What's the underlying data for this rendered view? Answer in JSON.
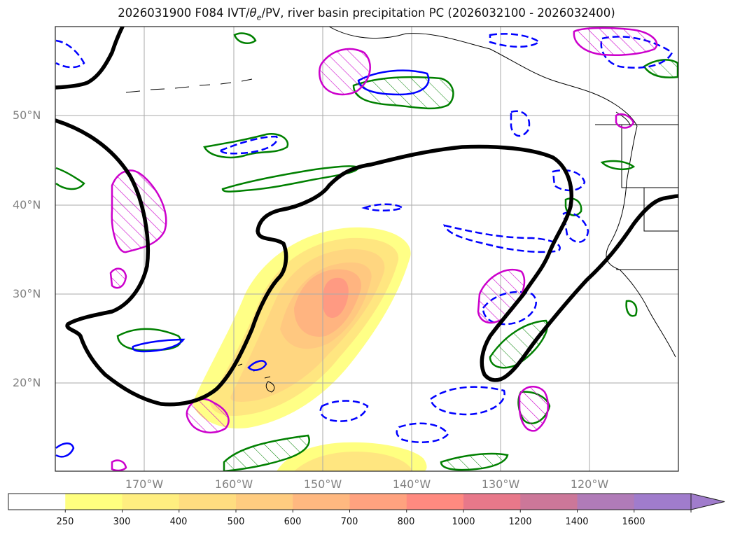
{
  "title_parts": [
    "2026031900 F084 IVT/",
    "θ",
    "e",
    "/PV, river basin precipitation PC (2026032100 - 2026032400)"
  ],
  "lat_labels": [
    {
      "id": "lat-50n",
      "text": "50°N",
      "lat": 50
    },
    {
      "id": "lat-40n",
      "text": "40°N",
      "lat": 40
    },
    {
      "id": "lat-30n",
      "text": "30°N",
      "lat": 30
    },
    {
      "id": "lat-20n",
      "text": "20°N",
      "lat": 20
    }
  ],
  "lon_labels": [
    {
      "id": "lon-170w",
      "text": "170°W",
      "lon": -170
    },
    {
      "id": "lon-160w",
      "text": "160°W",
      "lon": -160
    },
    {
      "id": "lon-150w",
      "text": "150°W",
      "lon": -150
    },
    {
      "id": "lon-140w",
      "text": "140°W",
      "lon": -140
    },
    {
      "id": "lon-130w",
      "text": "130°W",
      "lon": -130
    },
    {
      "id": "lon-120w",
      "text": "120°W",
      "lon": -120
    }
  ],
  "colorbar": {
    "ticks": [
      "250",
      "300",
      "400",
      "500",
      "600",
      "700",
      "800",
      "1000",
      "1200",
      "1400",
      "1600"
    ],
    "colors": [
      "#ffffff",
      "#ffff7f",
      "#ffee80",
      "#ffdd80",
      "#ffcc80",
      "#ffb880",
      "#ffa27f",
      "#ff8a80",
      "#e8788a",
      "#cc7799",
      "#b07bb8",
      "#a07ccc"
    ],
    "extend": "max"
  },
  "legend_colors": {
    "pv_contour": "#000000",
    "theta_e_solid_blue": "#0000ff",
    "theta_e_dashed_blue": "#0000ff",
    "green_precip": "#008000",
    "magenta_hatched": "#cc00cc"
  }
}
